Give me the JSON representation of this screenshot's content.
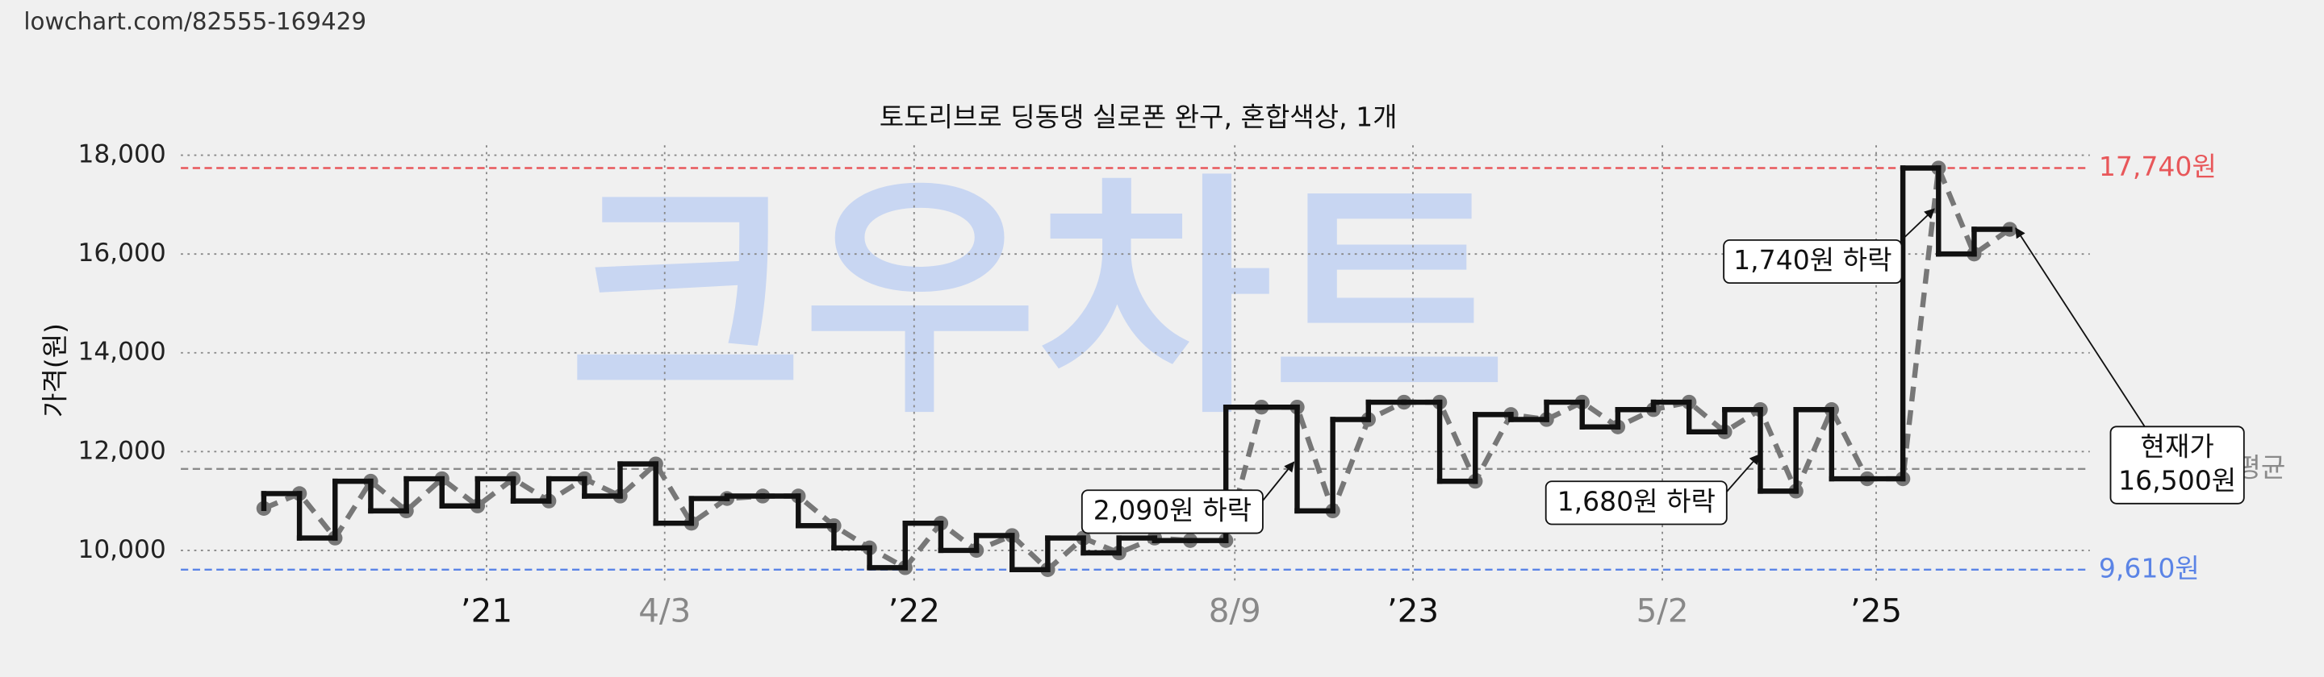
{
  "source_url": "lowchart.com/82555-169429",
  "chart_data": {
    "type": "step",
    "title": "토도리브로 딩동댕 실로폰 완구, 혼합색상, 1개",
    "ylabel": "가격(원)",
    "watermark": "크우차트",
    "categories": [
      null,
      null,
      null,
      null,
      null,
      null,
      "’21",
      null,
      null,
      null,
      null,
      "4/3",
      null,
      null,
      null,
      null,
      null,
      null,
      "’22",
      null,
      null,
      null,
      null,
      null,
      null,
      null,
      null,
      "8/9",
      null,
      null,
      null,
      null,
      "’23",
      null,
      null,
      null,
      null,
      null,
      null,
      "5/2",
      null,
      null,
      null,
      null,
      null,
      "’25",
      null,
      null,
      null,
      null
    ],
    "series": [
      {
        "color": "#111111",
        "values": [
          10850,
          11150,
          10250,
          11400,
          10800,
          11450,
          10900,
          11450,
          11000,
          11450,
          11100,
          11750,
          10550,
          11050,
          11100,
          11100,
          10500,
          10050,
          9650,
          10550,
          10000,
          10300,
          9610,
          10250,
          9950,
          10250,
          10200,
          10200,
          12900,
          12900,
          10800,
          12650,
          13000,
          13000,
          11400,
          12750,
          12650,
          13000,
          12500,
          12850,
          13000,
          12400,
          12850,
          11200,
          12850,
          11450,
          11450,
          17740,
          16000,
          16500
        ]
      }
    ],
    "ylim": [
      9300,
      18200
    ],
    "yticks": [
      {
        "value": 10000,
        "label": "10,000"
      },
      {
        "value": 12000,
        "label": "12,000"
      },
      {
        "value": 14000,
        "label": "14,000"
      },
      {
        "value": 16000,
        "label": "16,000"
      },
      {
        "value": 18000,
        "label": "18,000"
      }
    ],
    "grid": true,
    "reference_lines": [
      {
        "value": 17740,
        "label": "17,740원",
        "color": "#e8575a"
      },
      {
        "value": 11650,
        "label": "평균",
        "color": "#8a8a8a"
      },
      {
        "value": 9610,
        "label": "9,610원",
        "color": "#5b84e6"
      }
    ],
    "annotations": [
      {
        "text": [
          "2,090원 하락"
        ]
      },
      {
        "text": [
          "1,680원 하락"
        ]
      },
      {
        "text": [
          "1,740원 하락"
        ]
      },
      {
        "text": [
          "현재가",
          "16,500원"
        ]
      }
    ]
  }
}
